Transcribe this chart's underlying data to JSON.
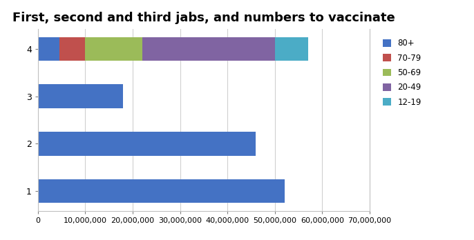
{
  "title": "First, second and third jabs, and numbers to vaccinate",
  "title_fontsize": 13,
  "ytick_labels": [
    "1",
    "2",
    "3",
    "4"
  ],
  "xlim": [
    0,
    70000000
  ],
  "xtick_interval": 10000000,
  "series": [
    {
      "label": "80+",
      "color": "#4472C4",
      "values": [
        52000000,
        46000000,
        18000000,
        4500000
      ]
    },
    {
      "label": "70-79",
      "color": "#C0504D",
      "values": [
        0,
        0,
        0,
        5500000
      ]
    },
    {
      "label": "50-69",
      "color": "#9BBB59",
      "values": [
        0,
        0,
        0,
        12000000
      ]
    },
    {
      "label": "20-49",
      "color": "#8064A2",
      "values": [
        0,
        0,
        0,
        28000000
      ]
    },
    {
      "label": "12-19",
      "color": "#4BACC6",
      "values": [
        0,
        0,
        0,
        7000000
      ]
    }
  ],
  "bar_height": 0.5,
  "background_color": "#FFFFFF",
  "grid_color": "#D0D0D0",
  "legend_fontsize": 8.5,
  "axis_label_fontsize": 9,
  "tick_label_fontsize": 8
}
